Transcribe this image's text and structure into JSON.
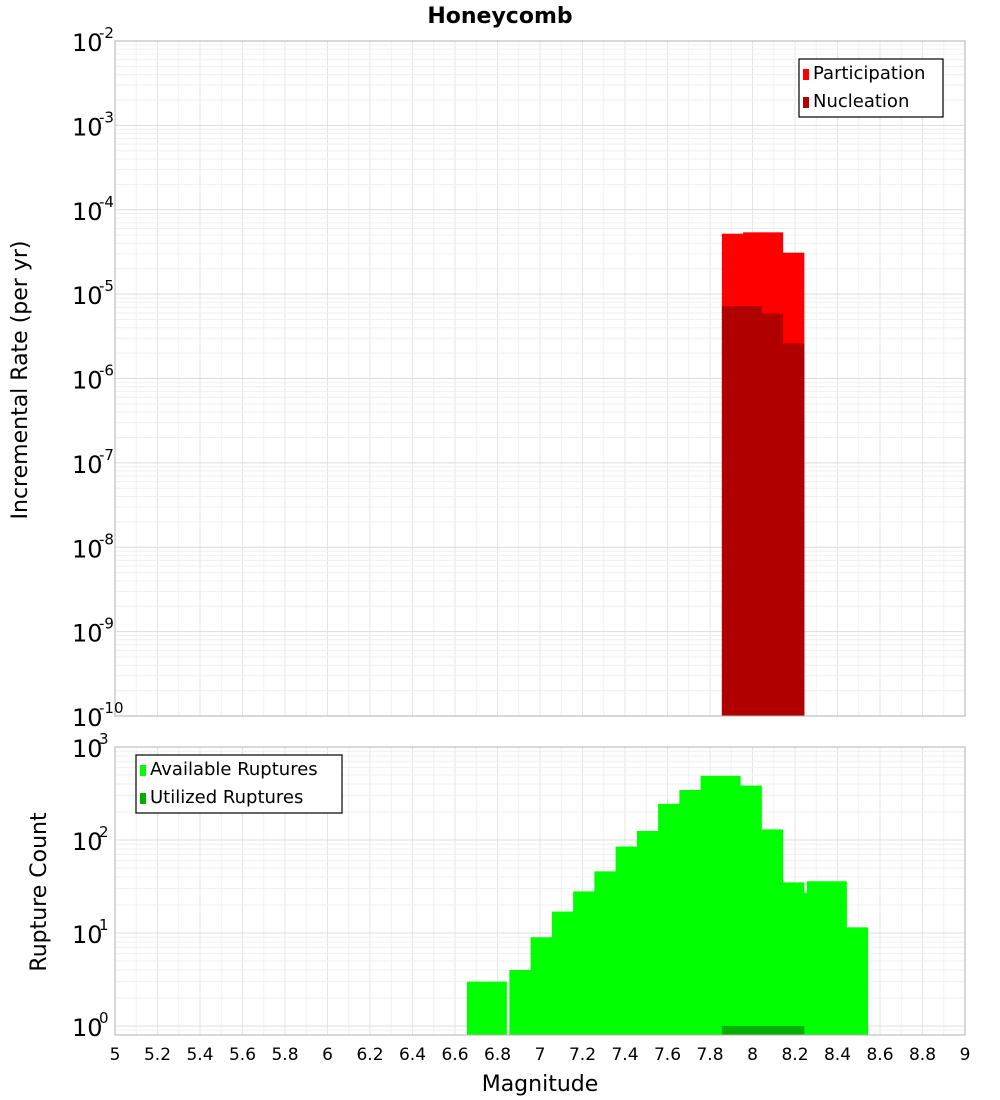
{
  "chart_data": [
    {
      "type": "bar",
      "title": "Honeycomb",
      "xlabel": "",
      "ylabel": "Incremental Rate (per yr)",
      "xlim": [
        5,
        9
      ],
      "ylim": [
        1e-10,
        0.01
      ],
      "yscale": "log",
      "ytick_exponents": [
        "-2",
        "-3",
        "-4",
        "-5",
        "-6",
        "-7",
        "-8",
        "-9",
        "-10"
      ],
      "ytick_base": "10",
      "legend": {
        "placement": "top-right",
        "entries": [
          "Participation",
          "Nucleation"
        ]
      },
      "colors": {
        "Participation": "#ff0000",
        "Nucleation": "#b00000"
      },
      "x": [
        7.95,
        8.05,
        8.15
      ],
      "series": [
        {
          "name": "Participation",
          "values": [
            5.2e-05,
            5.4e-05,
            3.1e-05
          ]
        },
        {
          "name": "Nucleation",
          "values": [
            7.2e-06,
            5.9e-06,
            2.6e-06
          ]
        }
      ]
    },
    {
      "type": "bar",
      "title": "",
      "xlabel": "Magnitude",
      "ylabel": "Rupture Count",
      "xlim": [
        5,
        9
      ],
      "ylim": [
        0.8,
        1000
      ],
      "yscale": "log",
      "ytick_exponents": [
        "3",
        "2",
        "1",
        "0"
      ],
      "ytick_values": [
        1000,
        100,
        10,
        1
      ],
      "ytick_base": "10",
      "xticks": [
        "5",
        "5.2",
        "5.4",
        "5.6",
        "5.8",
        "6",
        "6.2",
        "6.4",
        "6.6",
        "6.8",
        "7",
        "7.2",
        "7.4",
        "7.6",
        "7.8",
        "8",
        "8.2",
        "8.4",
        "8.6",
        "8.8",
        "9"
      ],
      "legend": {
        "placement": "top-left",
        "entries": [
          "Available Ruptures",
          "Utilized Ruptures"
        ]
      },
      "colors": {
        "Available Ruptures": "#00ff00",
        "Utilized Ruptures": "#00b000"
      },
      "x": [
        6.75,
        6.95,
        7.05,
        7.15,
        7.25,
        7.35,
        7.45,
        7.55,
        7.65,
        7.75,
        7.85,
        7.95,
        8.05,
        8.15,
        8.25,
        8.35,
        8.45
      ],
      "series": [
        {
          "name": "Available Ruptures",
          "values": [
            3,
            4,
            9,
            17,
            28,
            46,
            85,
            125,
            245,
            345,
            490,
            385,
            130,
            35,
            27,
            36,
            11.5
          ]
        },
        {
          "name": "Utilized Ruptures",
          "values": [
            null,
            null,
            null,
            null,
            null,
            null,
            null,
            null,
            null,
            null,
            null,
            1,
            1,
            1,
            null,
            null,
            null
          ]
        }
      ]
    }
  ]
}
